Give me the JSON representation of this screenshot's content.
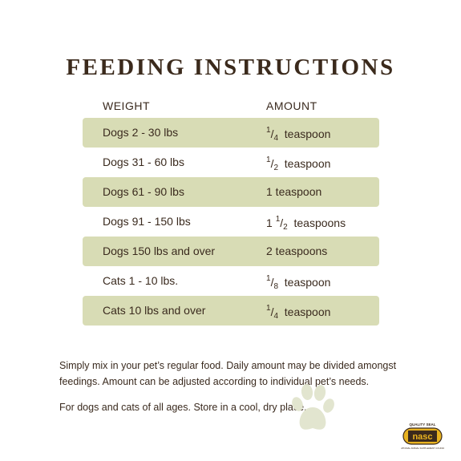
{
  "title": "FEEDING INSTRUCTIONS",
  "headers": {
    "weight": "WEIGHT",
    "amount": "AMOUNT"
  },
  "rows": [
    {
      "weight": "Dogs 2 - 30 lbs",
      "amount_whole": "",
      "amount_num": "1",
      "amount_den": "4",
      "amount_unit": "teaspoon"
    },
    {
      "weight": "Dogs 31 - 60 lbs",
      "amount_whole": "",
      "amount_num": "1",
      "amount_den": "2",
      "amount_unit": "teaspoon"
    },
    {
      "weight": "Dogs 61 - 90 lbs",
      "amount": "1 teaspoon"
    },
    {
      "weight": "Dogs 91 - 150 lbs",
      "amount_whole": "1",
      "amount_num": "1",
      "amount_den": "2",
      "amount_unit": "teaspoons"
    },
    {
      "weight": "Dogs 150 lbs and over",
      "amount": "2 teaspoons"
    },
    {
      "weight": "Cats 1 - 10 lbs.",
      "amount_whole": "",
      "amount_num": "1",
      "amount_den": "8",
      "amount_unit": "teaspoon"
    },
    {
      "weight": "Cats 10 lbs and over",
      "amount_whole": "",
      "amount_num": "1",
      "amount_den": "4",
      "amount_unit": "teaspoon"
    }
  ],
  "paragraphs": {
    "p1": "Simply mix in your pet’s regular food. Daily amount may be divided amongst feedings. Amount can be adjusted according to individual pet’s needs.",
    "p2": "For dogs and cats of all ages. Store in a cool, dry place."
  },
  "logo": {
    "top_text": "QUALITY SEAL",
    "main_text": "nasc",
    "bottom_text": "NATIONAL ANIMAL SUPPLEMENT COUNCIL"
  },
  "colors": {
    "row_shade": "#d8dcb5",
    "text": "#3a2a1e",
    "paw": "#e2e5cf",
    "logo_gold": "#e9b320"
  }
}
